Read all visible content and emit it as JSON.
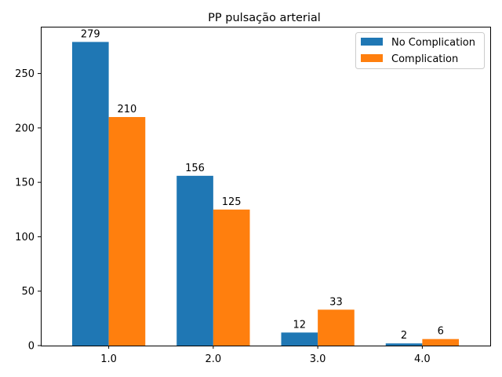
{
  "chart_data": {
    "type": "bar",
    "title": "PP pulsação arterial",
    "xlabel": "",
    "ylabel": "",
    "categories": [
      "1.0",
      "2.0",
      "3.0",
      "4.0"
    ],
    "series": [
      {
        "name": "No Complication",
        "values": [
          279,
          156,
          12,
          2
        ],
        "color": "#1f77b4"
      },
      {
        "name": "Complication",
        "values": [
          210,
          125,
          33,
          6
        ],
        "color": "#ff7f0e"
      }
    ],
    "yticks": [
      0,
      50,
      100,
      150,
      200,
      250
    ],
    "ylim": [
      0,
      293
    ],
    "grid": false,
    "legend_position": "upper right",
    "data_labels": true
  }
}
